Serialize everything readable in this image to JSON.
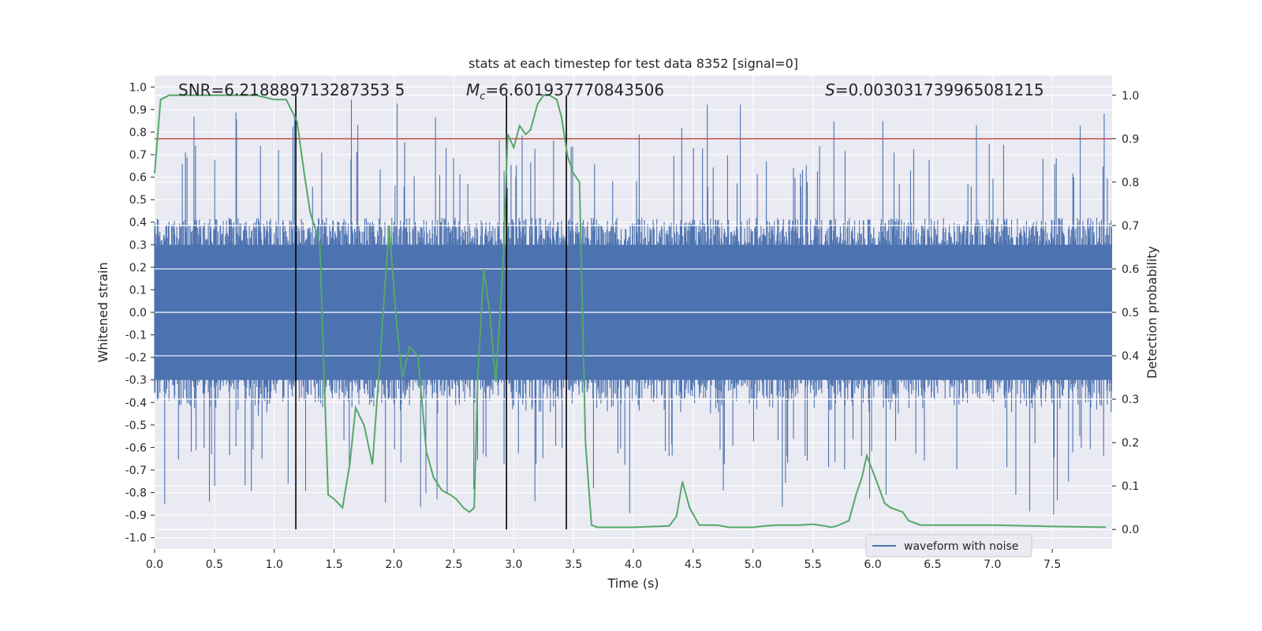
{
  "chart_data": {
    "type": "line",
    "title": "stats at each timestep for test data 8352 [signal=0]",
    "xlabel": "Time (s)",
    "ylabel": "Whitened strain",
    "y2label": "Detection probability",
    "xlim": [
      0.0,
      8.0
    ],
    "ylim": [
      -1.05,
      1.05
    ],
    "y2lim": [
      -0.045,
      1.045
    ],
    "x_ticks": [
      "0.0",
      "0.5",
      "1.0",
      "1.5",
      "2.0",
      "2.5",
      "3.0",
      "3.5",
      "4.0",
      "4.5",
      "5.0",
      "5.5",
      "6.0",
      "6.5",
      "7.0",
      "7.5"
    ],
    "y_ticks": [
      "1.0",
      "0.9",
      "0.8",
      "0.7",
      "0.6",
      "0.5",
      "0.4",
      "0.3",
      "0.2",
      "0.1",
      "0.0",
      "-0.1",
      "-0.2",
      "-0.3",
      "-0.4",
      "-0.5",
      "-0.6",
      "-0.7",
      "-0.8",
      "-0.9",
      "-1.0"
    ],
    "y2_ticks": [
      "1.0",
      "0.9",
      "0.8",
      "0.7",
      "0.6",
      "0.5",
      "0.4",
      "0.3",
      "0.2",
      "0.1",
      "0.0"
    ],
    "annotations": {
      "snr": "SNR=6.218889713287353 5",
      "mc_symbol": "M",
      "mc_sub": "c",
      "mc_value": "=6.601937770843506",
      "s_symbol": "S",
      "s_value": "=0.003031739965081215"
    },
    "threshold": 0.9,
    "vertical_lines_x": [
      1.18,
      2.94,
      3.44
    ],
    "legend": [
      {
        "label": "waveform with noise",
        "color": "#4c72b0"
      }
    ],
    "series": [
      {
        "name": "waveform with noise",
        "color": "#4c72b0",
        "axis": "left",
        "description": "whitened strain noise samples, envelope roughly ±0.4 with spikes up to ±0.95",
        "envelope": 0.42,
        "max_spike": 0.95
      },
      {
        "name": "detection probability",
        "color": "#55a868",
        "axis": "right",
        "x": [
          0.0,
          0.05,
          0.12,
          0.3,
          0.6,
          0.85,
          1.0,
          1.1,
          1.19,
          1.25,
          1.3,
          1.38,
          1.45,
          1.5,
          1.57,
          1.63,
          1.68,
          1.75,
          1.82,
          1.88,
          1.96,
          2.02,
          2.07,
          2.13,
          2.2,
          2.27,
          2.33,
          2.4,
          2.47,
          2.52,
          2.58,
          2.63,
          2.67,
          2.7,
          2.75,
          2.8,
          2.85,
          2.91,
          2.95,
          3.0,
          3.05,
          3.1,
          3.14,
          3.2,
          3.25,
          3.3,
          3.36,
          3.4,
          3.45,
          3.5,
          3.55,
          3.6,
          3.65,
          3.7,
          3.8,
          4.0,
          4.1,
          4.2,
          4.3,
          4.36,
          4.41,
          4.47,
          4.55,
          4.6,
          4.7,
          4.8,
          4.9,
          5.0,
          5.1,
          5.2,
          5.3,
          5.4,
          5.5,
          5.6,
          5.65,
          5.7,
          5.8,
          5.86,
          5.91,
          5.95,
          6.02,
          6.1,
          6.15,
          6.25,
          6.3,
          6.4,
          6.6,
          7.0,
          7.5,
          7.95
        ],
        "values": [
          0.82,
          0.99,
          1.0,
          1.0,
          1.0,
          1.0,
          0.99,
          0.99,
          0.94,
          0.82,
          0.73,
          0.66,
          0.08,
          0.07,
          0.05,
          0.15,
          0.28,
          0.24,
          0.15,
          0.38,
          0.7,
          0.48,
          0.35,
          0.42,
          0.4,
          0.18,
          0.12,
          0.09,
          0.08,
          0.07,
          0.05,
          0.04,
          0.05,
          0.35,
          0.6,
          0.5,
          0.34,
          0.6,
          0.91,
          0.88,
          0.93,
          0.91,
          0.92,
          0.98,
          1.0,
          1.0,
          0.99,
          0.95,
          0.86,
          0.82,
          0.8,
          0.2,
          0.01,
          0.005,
          0.005,
          0.005,
          0.006,
          0.007,
          0.008,
          0.03,
          0.11,
          0.05,
          0.01,
          0.01,
          0.01,
          0.005,
          0.005,
          0.005,
          0.008,
          0.01,
          0.01,
          0.01,
          0.012,
          0.008,
          0.005,
          0.008,
          0.02,
          0.08,
          0.12,
          0.17,
          0.12,
          0.06,
          0.05,
          0.04,
          0.02,
          0.01,
          0.01,
          0.01,
          0.007,
          0.005
        ]
      }
    ]
  }
}
